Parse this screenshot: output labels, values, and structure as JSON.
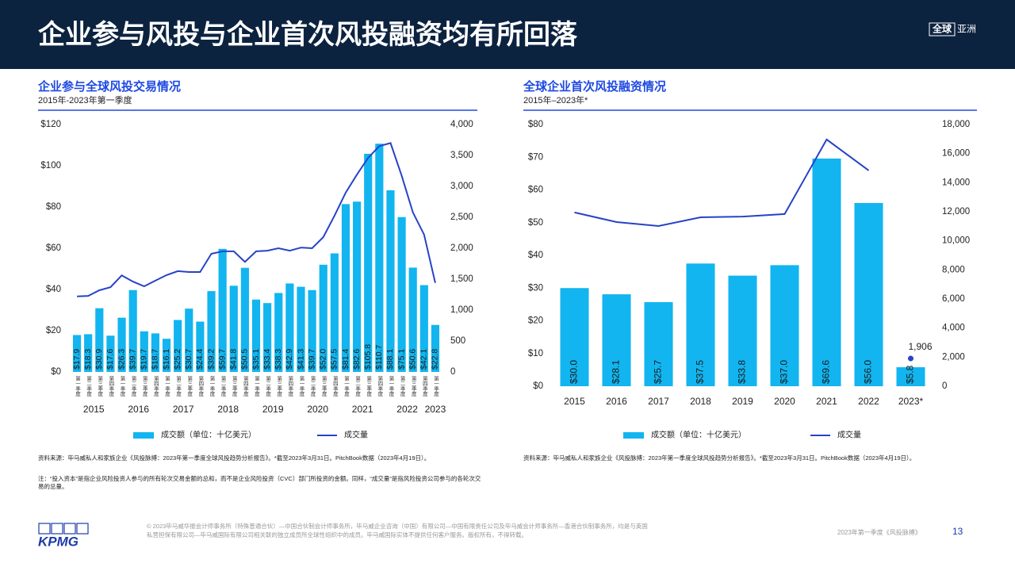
{
  "header": {
    "title": "企业参与风投与企业首次风投融资均有所回落",
    "tabs": [
      "全球",
      "亚洲"
    ]
  },
  "chart_data": [
    {
      "type": "combo",
      "title": "企业参与全球风投交易情况",
      "subtitle": "2015年-2023年第一季度",
      "categories": [
        "第一季度",
        "第二季度",
        "第三季度",
        "第四季度",
        "第一季度",
        "第二季度",
        "第三季度",
        "第四季度",
        "第一季度",
        "第二季度",
        "第三季度",
        "第四季度",
        "第一季度",
        "第二季度",
        "第三季度",
        "第四季度",
        "第一季度",
        "第二季度",
        "第三季度",
        "第四季度",
        "第一季度",
        "第二季度",
        "第三季度",
        "第四季度",
        "第一季度",
        "第二季度",
        "第三季度",
        "第四季度",
        "第一季度",
        "第二季度",
        "第三季度",
        "第四季度",
        "第一季度"
      ],
      "x_groups": [
        {
          "label": "2015",
          "count": 4
        },
        {
          "label": "2016",
          "count": 4
        },
        {
          "label": "2017",
          "count": 4
        },
        {
          "label": "2018",
          "count": 4
        },
        {
          "label": "2019",
          "count": 4
        },
        {
          "label": "2020",
          "count": 4
        },
        {
          "label": "2021",
          "count": 4
        },
        {
          "label": "2022",
          "count": 4
        },
        {
          "label": "2023",
          "count": 1
        }
      ],
      "series": [
        {
          "name": "成交额（单位：十亿美元）",
          "type": "bar",
          "color": "#12b5ef",
          "values": [
            17.9,
            18.3,
            30.9,
            17.6,
            26.3,
            39.7,
            19.7,
            18.7,
            16.1,
            25.2,
            30.7,
            24.4,
            39.2,
            59.7,
            41.8,
            50.5,
            35.1,
            33.4,
            38.3,
            42.9,
            41.3,
            39.7,
            52.0,
            57.5,
            81.4,
            82.6,
            105.8,
            110.7,
            88.1,
            75.1,
            50.6,
            42.1,
            22.8
          ],
          "value_labels": [
            "$17.9",
            "$18.3",
            "$30.9",
            "$17.6",
            "$26.3",
            "$39.7",
            "$19.7",
            "$18.7",
            "$16.1",
            "$25.2",
            "$30.7",
            "$24.4",
            "$39.2",
            "$59.7",
            "$41.8",
            "$50.5",
            "$35.1",
            "$33.4",
            "$38.3",
            "$42.9",
            "$41.3",
            "$39.7",
            "$52.0",
            "$57.5",
            "$81.4",
            "$82.6",
            "$105.8",
            "$110.7",
            "$88.1",
            "$75.1",
            "$50.6",
            "$42.1",
            "$22.8"
          ]
        },
        {
          "name": "成交量",
          "type": "line",
          "axis": "y2",
          "color": "#2743c7",
          "values": [
            1220,
            1230,
            1320,
            1370,
            1560,
            1460,
            1385,
            1475,
            1565,
            1630,
            1615,
            1615,
            1910,
            1950,
            1950,
            1780,
            1950,
            1960,
            2000,
            1960,
            2010,
            2000,
            2180,
            2525,
            2900,
            3190,
            3460,
            3650,
            3700,
            3170,
            2580,
            2220,
            1440
          ]
        }
      ],
      "ylim": [
        0,
        120
      ],
      "yticks": [
        {
          "value": 0,
          "label": "$0"
        },
        {
          "value": 20,
          "label": "$20"
        },
        {
          "value": 40,
          "label": "$40"
        },
        {
          "value": 60,
          "label": "$60"
        },
        {
          "value": 80,
          "label": "$80"
        },
        {
          "value": 100,
          "label": "$100"
        },
        {
          "value": 120,
          "label": "$120"
        }
      ],
      "y2lim": [
        0,
        4000
      ],
      "y2ticks": [
        0,
        500,
        {
          "value": 1000,
          "label": "1,000"
        },
        {
          "value": 1500,
          "label": "1,500"
        },
        {
          "value": 2000,
          "label": "2,000"
        },
        {
          "value": 2500,
          "label": "2,500"
        },
        {
          "value": 3000,
          "label": "3,000"
        },
        {
          "value": 3500,
          "label": "3,500"
        },
        {
          "value": 4000,
          "label": "4,000"
        }
      ],
      "source": "资料来源：毕马威私人和家族企业《风投脉搏：2023年第一季度全球风投趋势分析报告》。*截至2023年3月31日。PitchBook数据（2023年4月19日）。",
      "note": "注：“投入资本”是指企业风险投资人参与的所有轮次交易金额的总和，而不是企业风险投资（CVC）部门所投资的金额。同样，“成交量”是指风险投资公司参与的各轮次交易的总量。"
    },
    {
      "type": "combo",
      "title": "全球企业首次风投融资情况",
      "subtitle": "2015年–2023年*",
      "categories": [
        "2015",
        "2016",
        "2017",
        "2018",
        "2019",
        "2020",
        "2021",
        "2022",
        "2023*"
      ],
      "series": [
        {
          "name": "成交额（单位：十亿美元）",
          "type": "bar",
          "color": "#12b5ef",
          "values": [
            30.0,
            28.1,
            25.7,
            37.5,
            33.8,
            37.0,
            69.6,
            56.0,
            5.8
          ],
          "value_labels": [
            "$30.0",
            "$28.1",
            "$25.7",
            "$37.5",
            "$33.8",
            "$37.0",
            "$69.6",
            "$56.0",
            "$5.8"
          ]
        },
        {
          "name": "成交量",
          "type": "line",
          "axis": "y2",
          "color": "#2743c7",
          "values": [
            11950,
            11290,
            11020,
            11620,
            11670,
            11840,
            16970,
            14840,
            null
          ]
        }
      ],
      "point": {
        "index": 8,
        "value": 1906,
        "label": "1,906"
      },
      "ylim": [
        0,
        80
      ],
      "yticks": [
        {
          "value": 0,
          "label": "$0"
        },
        {
          "value": 10,
          "label": "$10"
        },
        {
          "value": 20,
          "label": "$20"
        },
        {
          "value": 30,
          "label": "$30"
        },
        {
          "value": 40,
          "label": "$40"
        },
        {
          "value": 50,
          "label": "$50"
        },
        {
          "value": 60,
          "label": "$60"
        },
        {
          "value": 70,
          "label": "$70"
        },
        {
          "value": 80,
          "label": "$80"
        }
      ],
      "y2lim": [
        0,
        18000
      ],
      "y2ticks": [
        0,
        {
          "value": 2000,
          "label": "2,000"
        },
        {
          "value": 4000,
          "label": "4,000"
        },
        {
          "value": 6000,
          "label": "6,000"
        },
        {
          "value": 8000,
          "label": "8,000"
        },
        {
          "value": 10000,
          "label": "10,000"
        },
        {
          "value": 12000,
          "label": "12,000"
        },
        {
          "value": 14000,
          "label": "14,000"
        },
        {
          "value": 16000,
          "label": "16,000"
        },
        {
          "value": 18000,
          "label": "18,000"
        }
      ],
      "source": "资料来源：毕马威私人和家族企业《风投脉搏：2023年第一季度全球风投趋势分析报告》。*截至2023年3月31日。PitchBook数据（2023年4月19日）。"
    }
  ],
  "footer": {
    "logo": "KPMG",
    "copyright": [
      "© 2023毕马威华振会计师事务所（特殊普通合伙）—中国合伙制会计师事务所，毕马威企业咨询（中国）有限公司—中国有限责任公司及毕马威会计师事务所—香港合伙制事务所，均是与英国",
      "私营担保有限公司—毕马威国际有限公司相关联的独立成员所全球性组织中的成员。毕马威国际实体不提供任何客户服务。版权所有，不得转载。"
    ],
    "report": "2023年第一季度《风投脉搏》",
    "page": "13"
  }
}
